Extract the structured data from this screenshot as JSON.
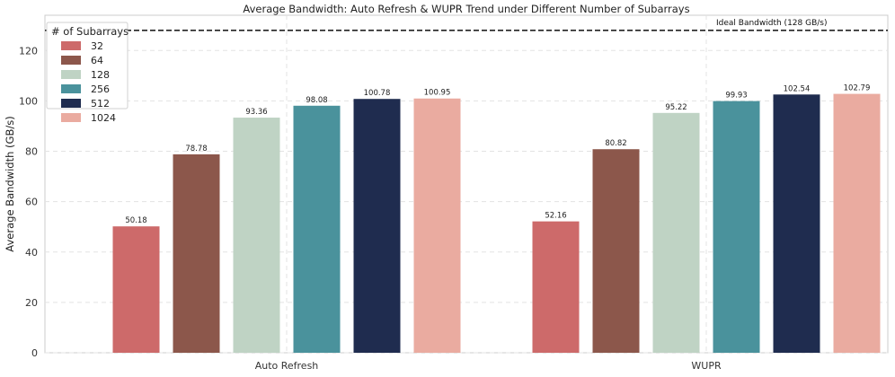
{
  "chart_data": {
    "type": "bar",
    "title": "Average Bandwidth: Auto Refresh & WUPR Trend under Different Number of Subarrays",
    "xlabel": "",
    "ylabel": "Average Bandwidth (GB/s)",
    "ylim": [
      0,
      134
    ],
    "yticks": [
      0,
      20,
      40,
      60,
      80,
      100,
      120
    ],
    "grid": true,
    "categories": [
      "Auto Refresh",
      "WUPR"
    ],
    "legend": {
      "title": "# of Subarrays",
      "placement": "top-left"
    },
    "series": [
      {
        "name": "32",
        "color": "#cd6a6a",
        "values": [
          50.18,
          52.16
        ]
      },
      {
        "name": "64",
        "color": "#8c574b",
        "values": [
          78.78,
          80.82
        ]
      },
      {
        "name": "128",
        "color": "#bfd3c4",
        "values": [
          93.36,
          95.22
        ]
      },
      {
        "name": "256",
        "color": "#4a929c",
        "values": [
          98.08,
          99.93
        ]
      },
      {
        "name": "512",
        "color": "#1f2c4f",
        "values": [
          100.78,
          102.54
        ]
      },
      {
        "name": "1024",
        "color": "#eaaba0",
        "values": [
          100.95,
          102.79
        ]
      }
    ],
    "reference_line": {
      "value": 128,
      "label": "Ideal Bandwidth (128 GB/s)",
      "style": "dashed",
      "color": "#222222"
    }
  }
}
